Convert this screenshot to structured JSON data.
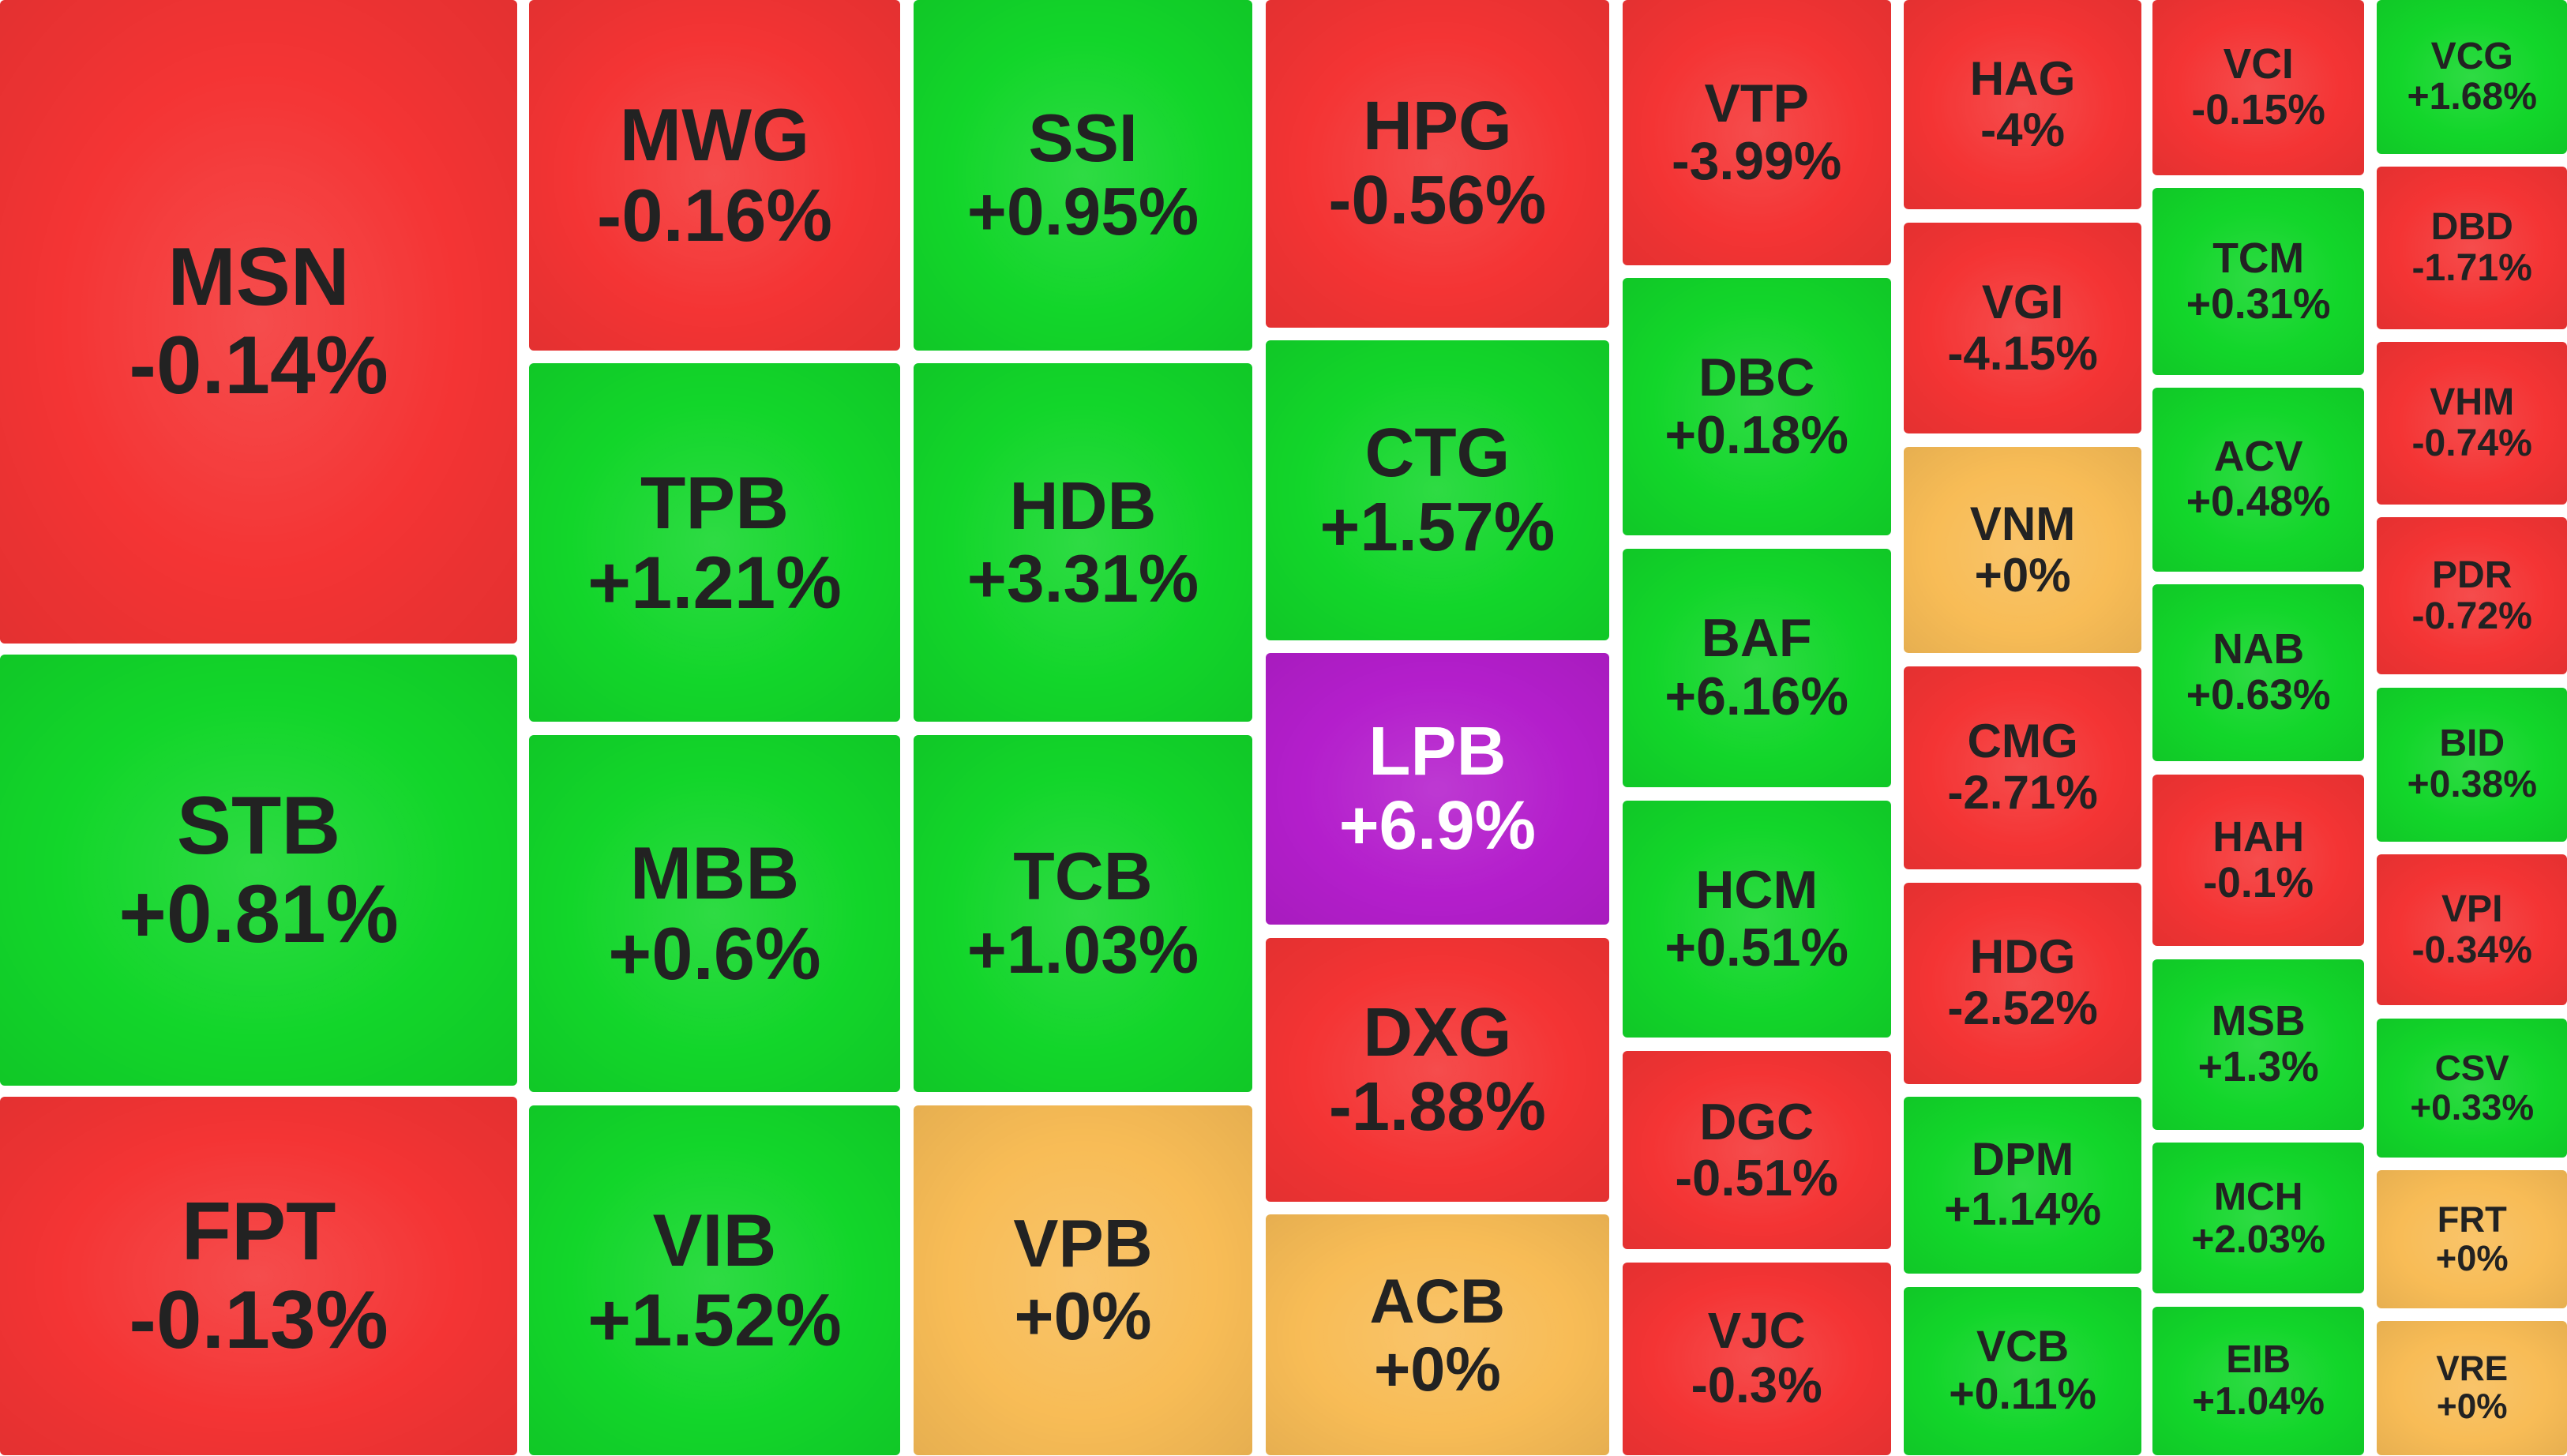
{
  "tiles": [
    {
      "ticker": "MSN",
      "change": "-0.14%",
      "color": "#f43434"
    },
    {
      "ticker": "STB",
      "change": "+0.81%",
      "color": "#12d62a"
    },
    {
      "ticker": "FPT",
      "change": "-0.13%",
      "color": "#f43434"
    },
    {
      "ticker": "MWG",
      "change": "-0.16%",
      "color": "#f43434"
    },
    {
      "ticker": "TPB",
      "change": "+1.21%",
      "color": "#12d62a"
    },
    {
      "ticker": "MBB",
      "change": "+0.6%",
      "color": "#12d62a"
    },
    {
      "ticker": "VIB",
      "change": "+1.52%",
      "color": "#12d62a"
    },
    {
      "ticker": "SSI",
      "change": "+0.95%",
      "color": "#12d62a"
    },
    {
      "ticker": "HDB",
      "change": "+3.31%",
      "color": "#12d62a"
    },
    {
      "ticker": "TCB",
      "change": "+1.03%",
      "color": "#12d62a"
    },
    {
      "ticker": "VPB",
      "change": "+0%",
      "color": "#f8bc56"
    },
    {
      "ticker": "HPG",
      "change": "-0.56%",
      "color": "#f43434"
    },
    {
      "ticker": "CTG",
      "change": "+1.57%",
      "color": "#12d62a"
    },
    {
      "ticker": "LPB",
      "change": "+6.9%",
      "color": "#b41ecc"
    },
    {
      "ticker": "DXG",
      "change": "-1.88%",
      "color": "#f43434"
    },
    {
      "ticker": "ACB",
      "change": "+0%",
      "color": "#f8bc56"
    },
    {
      "ticker": "VTP",
      "change": "-3.99%",
      "color": "#f43434"
    },
    {
      "ticker": "DBC",
      "change": "+0.18%",
      "color": "#12d62a"
    },
    {
      "ticker": "BAF",
      "change": "+6.16%",
      "color": "#12d62a"
    },
    {
      "ticker": "HCM",
      "change": "+0.51%",
      "color": "#12d62a"
    },
    {
      "ticker": "DGC",
      "change": "-0.51%",
      "color": "#f43434"
    },
    {
      "ticker": "VJC",
      "change": "-0.3%",
      "color": "#f43434"
    },
    {
      "ticker": "HAG",
      "change": "-4%",
      "color": "#f43434"
    },
    {
      "ticker": "VGI",
      "change": "-4.15%",
      "color": "#f43434"
    },
    {
      "ticker": "VNM",
      "change": "+0%",
      "color": "#f8bc56"
    },
    {
      "ticker": "CMG",
      "change": "-2.71%",
      "color": "#f43434"
    },
    {
      "ticker": "HDG",
      "change": "-2.52%",
      "color": "#f43434"
    },
    {
      "ticker": "DPM",
      "change": "+1.14%",
      "color": "#12d62a"
    },
    {
      "ticker": "VCB",
      "change": "+0.11%",
      "color": "#12d62a"
    },
    {
      "ticker": "VCI",
      "change": "-0.15%",
      "color": "#f43434"
    },
    {
      "ticker": "TCM",
      "change": "+0.31%",
      "color": "#12d62a"
    },
    {
      "ticker": "ACV",
      "change": "+0.48%",
      "color": "#12d62a"
    },
    {
      "ticker": "NAB",
      "change": "+0.63%",
      "color": "#12d62a"
    },
    {
      "ticker": "HAH",
      "change": "-0.1%",
      "color": "#f43434"
    },
    {
      "ticker": "MSB",
      "change": "+1.3%",
      "color": "#12d62a"
    },
    {
      "ticker": "MCH",
      "change": "+2.03%",
      "color": "#12d62a"
    },
    {
      "ticker": "EIB",
      "change": "+1.04%",
      "color": "#12d62a"
    },
    {
      "ticker": "VCG",
      "change": "+1.68%",
      "color": "#12d62a"
    },
    {
      "ticker": "DBD",
      "change": "-1.71%",
      "color": "#f43434"
    },
    {
      "ticker": "VHM",
      "change": "-0.74%",
      "color": "#f43434"
    },
    {
      "ticker": "PDR",
      "change": "-0.72%",
      "color": "#f43434"
    },
    {
      "ticker": "BID",
      "change": "+0.38%",
      "color": "#12d62a"
    },
    {
      "ticker": "VPI",
      "change": "-0.34%",
      "color": "#f43434"
    },
    {
      "ticker": "CSV",
      "change": "+0.33%",
      "color": "#12d62a"
    },
    {
      "ticker": "FRT",
      "change": "+0%",
      "color": "#f8bc56"
    },
    {
      "ticker": "VRE",
      "change": "+0%",
      "color": "#f8bc56"
    }
  ]
}
